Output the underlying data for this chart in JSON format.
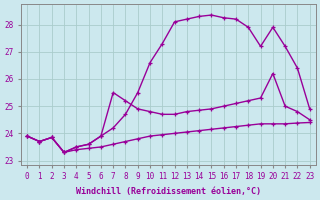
{
  "bg_color": "#cce8ee",
  "line_color": "#990099",
  "grid_color": "#aacccc",
  "xlabel": "Windchill (Refroidissement éolien,°C)",
  "line1_x": [
    0,
    1,
    2,
    3,
    4,
    5,
    6,
    7,
    8,
    9,
    10,
    11,
    12,
    13,
    14,
    15,
    16,
    17,
    18,
    19,
    20,
    21,
    22,
    23
  ],
  "line1_y": [
    23.9,
    23.7,
    23.85,
    23.3,
    23.4,
    23.45,
    23.5,
    23.6,
    23.7,
    23.8,
    23.9,
    23.95,
    24.0,
    24.05,
    24.1,
    24.15,
    24.2,
    24.25,
    24.3,
    24.35,
    24.35,
    24.35,
    24.38,
    24.4
  ],
  "line2_x": [
    0,
    1,
    2,
    3,
    4,
    5,
    6,
    7,
    8,
    9,
    10,
    11,
    12,
    13,
    14,
    15,
    16,
    17,
    18,
    19,
    20,
    21,
    22,
    23
  ],
  "line2_y": [
    23.9,
    23.7,
    23.85,
    23.3,
    23.5,
    23.6,
    23.9,
    25.5,
    25.2,
    24.9,
    24.8,
    24.7,
    24.7,
    24.8,
    24.85,
    24.9,
    25.0,
    25.1,
    25.2,
    25.3,
    26.2,
    25.0,
    24.8,
    24.5
  ],
  "line3_x": [
    0,
    1,
    2,
    3,
    4,
    5,
    6,
    7,
    8,
    9,
    10,
    11,
    12,
    13,
    14,
    15,
    16,
    17,
    18,
    19,
    20,
    21,
    22,
    23
  ],
  "line3_y": [
    23.9,
    23.7,
    23.85,
    23.3,
    23.5,
    23.6,
    23.9,
    24.2,
    24.7,
    25.5,
    26.6,
    27.3,
    28.1,
    28.2,
    28.3,
    28.35,
    28.25,
    28.2,
    27.9,
    27.2,
    27.9,
    27.2,
    26.4,
    24.9
  ],
  "xlim": [
    -0.5,
    23.5
  ],
  "ylim": [
    22.85,
    28.75
  ],
  "yticks": [
    23,
    24,
    25,
    26,
    27,
    28
  ],
  "xticks": [
    0,
    1,
    2,
    3,
    4,
    5,
    6,
    7,
    8,
    9,
    10,
    11,
    12,
    13,
    14,
    15,
    16,
    17,
    18,
    19,
    20,
    21,
    22,
    23
  ],
  "tick_fontsize": 5.5,
  "label_fontsize": 6.0,
  "linewidth": 1.0,
  "markersize": 3.5
}
